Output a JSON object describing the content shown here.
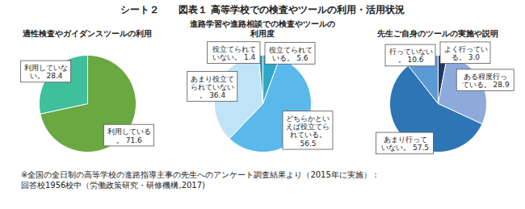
{
  "title": "シート２　　図表１ 高等学校での検査やツールの利用・活用状況",
  "note": "※全国の全日制の高等学校の進路指導主事の先生へのアンケート調査結果より（2015年に実施）：\n回答校1956校中（労働政策研究・研修機構,2017)",
  "chart_data": [
    {
      "type": "pie",
      "title": "適性検査やガイダンスツールの利用",
      "categories": [
        "利用している。",
        "利用していない。"
      ],
      "values": [
        71.6,
        28.4
      ],
      "colors": [
        "#6aa842",
        "#3fbf9c"
      ],
      "data_labels": true
    },
    {
      "type": "pie",
      "title": "進路学習や進路相談での検査やツールの\n利用度",
      "categories": [
        "役立てられている。",
        "どちらかといえば役立てられている。",
        "あまり役立てられていない。",
        "役立てられていない。"
      ],
      "values": [
        5.6,
        56.5,
        36.4,
        1.4
      ],
      "colors": [
        "#2fa7c8",
        "#5ab9ea",
        "#bfe4f7",
        "#3a9fb0"
      ],
      "data_labels": true
    },
    {
      "type": "pie",
      "title": "先生ご自身のツールの実施や説明",
      "categories": [
        "よく行っている。",
        "ある程度行っている。",
        "あまり行っていない。",
        "行っていない。"
      ],
      "values": [
        3.0,
        28.9,
        57.5,
        10.6
      ],
      "value_labels": [
        "3.0",
        "28.9",
        "57.5",
        "10.6"
      ],
      "colors": [
        "#1f3864",
        "#8eaadb",
        "#2e75b6",
        "#5b9bd5"
      ],
      "data_labels": true
    }
  ]
}
